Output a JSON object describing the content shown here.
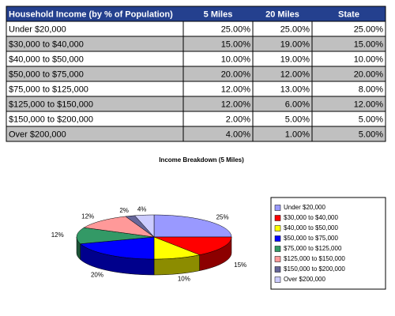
{
  "table": {
    "header": [
      "Household Income (by % of Population)",
      "5 Miles",
      "20 Miles",
      "State"
    ],
    "rows": [
      [
        "Under $20,000",
        "25.00%",
        "25.00%",
        "25.00%"
      ],
      [
        "$30,000 to $40,000",
        "15.00%",
        "19.00%",
        "15.00%"
      ],
      [
        "$40,000 to $50,000",
        "10.00%",
        "19.00%",
        "10.00%"
      ],
      [
        "$50,000 to $75,000",
        "20.00%",
        "12.00%",
        "20.00%"
      ],
      [
        "$75,000 to $125,000",
        "12.00%",
        "13.00%",
        "8.00%"
      ],
      [
        "$125,000 to $150,000",
        "12.00%",
        "6.00%",
        "12.00%"
      ],
      [
        "$150,000 to $200,000",
        "2.00%",
        "5.00%",
        "5.00%"
      ],
      [
        "Over $200,000",
        "4.00%",
        "1.00%",
        "5.00%"
      ]
    ]
  },
  "chart_data": {
    "type": "pie",
    "title": "Income Breakdown (5 Miles)",
    "categories": [
      "Under $20,000",
      "$30,000 to $40,000",
      "$40,000 to $50,000",
      "$50,000 to $75,000",
      "$75,000 to $125,000",
      "$125,000 to $150,000",
      "$150,000 to $200,000",
      "Over $200,000"
    ],
    "values": [
      25,
      15,
      10,
      20,
      12,
      12,
      2,
      4
    ],
    "value_labels": [
      "25%",
      "15%",
      "10%",
      "20%",
      "12%",
      "12%",
      "2%",
      "4%"
    ],
    "colors": [
      "#9999ff",
      "#ff0000",
      "#ffff00",
      "#0000ff",
      "#339966",
      "#ff9999",
      "#666699",
      "#ccccff"
    ],
    "legend": "right"
  }
}
